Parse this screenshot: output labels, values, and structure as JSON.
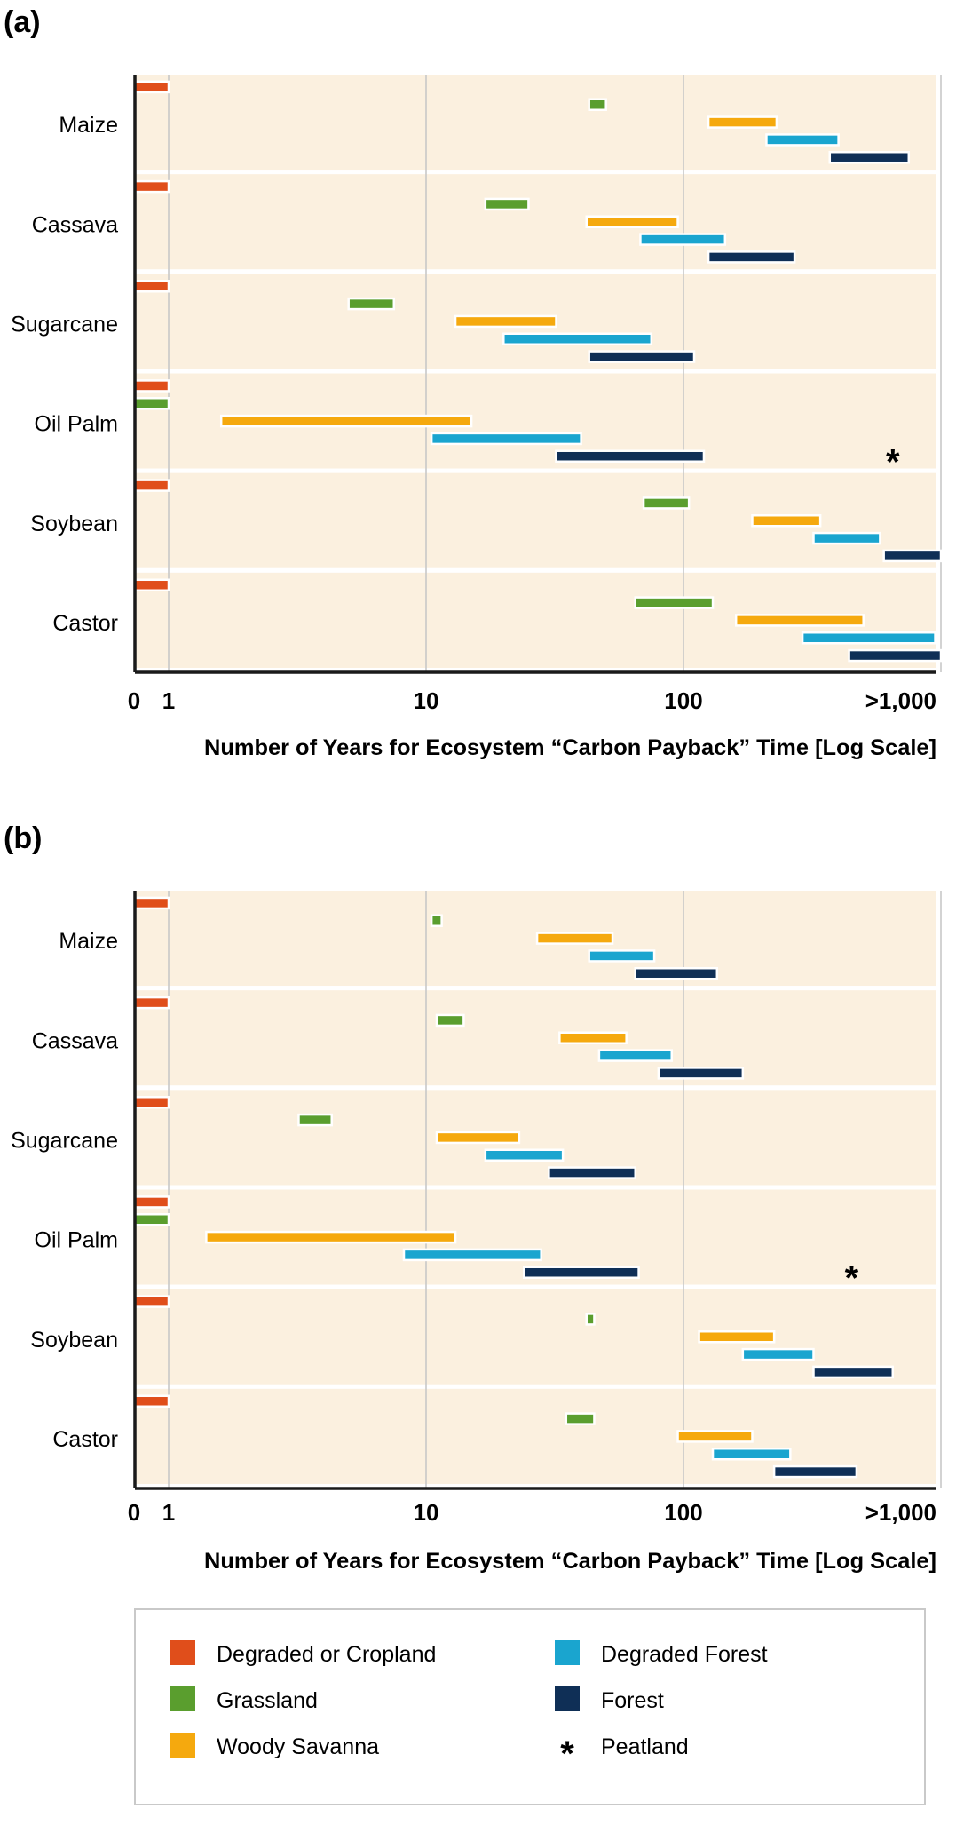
{
  "chart_data": [
    {
      "panel": "(a)",
      "type": "bar",
      "orientation": "horizontal-range",
      "xlabel": "Number of Years for Ecosystem “Carbon Payback” Time [Log Scale]",
      "xscale": "log",
      "x_ticks": [
        "0",
        "1",
        "10",
        "100",
        ">1,000"
      ],
      "xlim": [
        0,
        1000
      ],
      "grid": true,
      "categories": [
        "Maize",
        "Cassava",
        "Sugarcane",
        "Oil Palm",
        "Soybean",
        "Castor"
      ],
      "series": [
        {
          "name": "Degraded or Cropland",
          "values": [
            [
              0,
              1
            ],
            [
              0,
              1
            ],
            [
              0,
              1
            ],
            [
              0,
              1
            ],
            [
              0,
              1
            ],
            [
              0,
              1
            ]
          ]
        },
        {
          "name": "Grassland",
          "values": [
            [
              43,
              50
            ],
            [
              17,
              25
            ],
            [
              5,
              7.5
            ],
            [
              0,
              1
            ],
            [
              70,
              105
            ],
            [
              65,
              130
            ]
          ]
        },
        {
          "name": "Woody Savanna",
          "values": [
            [
              125,
              230
            ],
            [
              42,
              95
            ],
            [
              13,
              32
            ],
            [
              1.6,
              15
            ],
            [
              185,
              340
            ],
            [
              160,
              500
            ]
          ]
        },
        {
          "name": "Degraded Forest",
          "values": [
            [
              210,
              400
            ],
            [
              68,
              145
            ],
            [
              20,
              75
            ],
            [
              10.5,
              40
            ],
            [
              320,
              580
            ],
            [
              290,
              950
            ]
          ]
        },
        {
          "name": "Forest",
          "values": [
            [
              370,
              750
            ],
            [
              125,
              270
            ],
            [
              43,
              110
            ],
            [
              32,
              120
            ],
            [
              600,
              1000
            ],
            [
              440,
              1000
            ]
          ]
        }
      ],
      "peatland_marker": "Oil Palm"
    },
    {
      "panel": "(b)",
      "type": "bar",
      "orientation": "horizontal-range",
      "xlabel": "Number of Years for Ecosystem “Carbon Payback” Time [Log Scale]",
      "xscale": "log",
      "x_ticks": [
        "0",
        "1",
        "10",
        "100",
        ">1,000"
      ],
      "xlim": [
        0,
        1000
      ],
      "grid": true,
      "categories": [
        "Maize",
        "Cassava",
        "Sugarcane",
        "Oil Palm",
        "Soybean",
        "Castor"
      ],
      "series": [
        {
          "name": "Degraded or Cropland",
          "values": [
            [
              0,
              1
            ],
            [
              0,
              1
            ],
            [
              0,
              1
            ],
            [
              0,
              1
            ],
            [
              0,
              1
            ],
            [
              0,
              1
            ]
          ]
        },
        {
          "name": "Grassland",
          "values": [
            [
              10.5,
              11.5
            ],
            [
              11,
              14
            ],
            [
              3.2,
              4.3
            ],
            [
              0,
              1
            ],
            [
              42,
              45
            ],
            [
              35,
              45
            ]
          ]
        },
        {
          "name": "Woody Savanna",
          "values": [
            [
              27,
              53
            ],
            [
              33,
              60
            ],
            [
              11,
              23
            ],
            [
              1.4,
              13
            ],
            [
              115,
              225
            ],
            [
              95,
              185
            ]
          ]
        },
        {
          "name": "Degraded Forest",
          "values": [
            [
              43,
              77
            ],
            [
              47,
              90
            ],
            [
              17,
              34
            ],
            [
              8.2,
              28
            ],
            [
              170,
              320
            ],
            [
              130,
              260
            ]
          ]
        },
        {
          "name": "Forest",
          "values": [
            [
              65,
              135
            ],
            [
              80,
              170
            ],
            [
              30,
              65
            ],
            [
              24,
              67
            ],
            [
              320,
              650
            ],
            [
              225,
              470
            ]
          ]
        }
      ],
      "peatland_marker": "Oil Palm"
    }
  ],
  "legend": [
    {
      "label": "Degraded or Cropland",
      "color": "#e04e1b",
      "icon": "swatch"
    },
    {
      "label": "Degraded Forest",
      "color": "#1aa5cf",
      "icon": "swatch"
    },
    {
      "label": "Grassland",
      "color": "#5a9e2e",
      "icon": "swatch"
    },
    {
      "label": "Forest",
      "color": "#0f2f56",
      "icon": "swatch"
    },
    {
      "label": "Woody Savanna",
      "color": "#f5a90e",
      "icon": "swatch"
    },
    {
      "label": "Peatland",
      "color": "#1a1a1a",
      "icon": "asterisk",
      "symbol": "*"
    }
  ],
  "colors": {
    "panel_background": "#fbf0df",
    "grid_line": "#c8c8c8",
    "axis_line": "#1a1a1a",
    "row_separator": "#ffffff"
  }
}
